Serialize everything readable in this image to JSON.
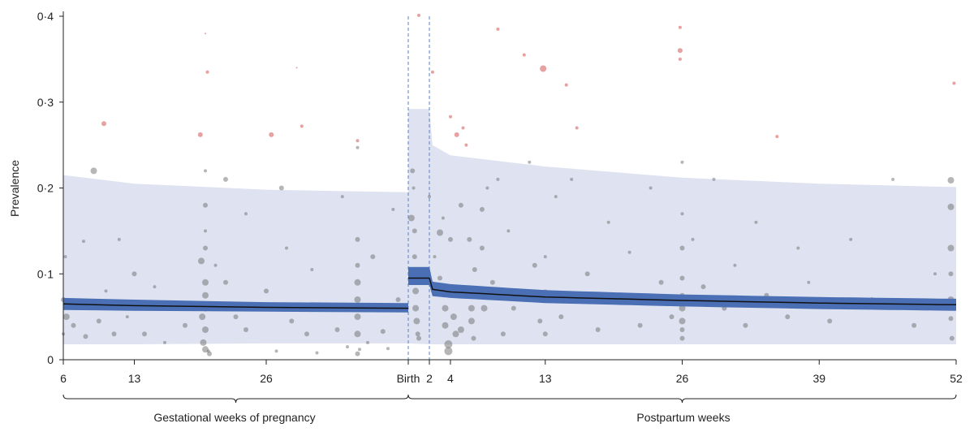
{
  "chart_data": {
    "type": "scatter",
    "ylabel": "Prevalence",
    "ylim": [
      0,
      0.4
    ],
    "y_ticks": [
      "0",
      "0·1",
      "0·2",
      "0·3",
      "0·4"
    ],
    "y_tick_values": [
      0,
      0.1,
      0.2,
      0.3,
      0.4
    ],
    "x_ticks_pregnancy": [
      "6",
      "13",
      "26",
      "Birth"
    ],
    "x_ticks_pregnancy_weeks": [
      6,
      13,
      26,
      40
    ],
    "x_ticks_postpartum": [
      "2",
      "4",
      "13",
      "26",
      "39",
      "52"
    ],
    "x_ticks_postpartum_weeks": [
      2,
      4,
      13,
      26,
      39,
      52
    ],
    "group_labels": {
      "pregnancy": "Gestational weeks of pregnancy",
      "postpartum": "Postpartum weeks"
    },
    "colors": {
      "ci_band": "#4a6fb5",
      "prediction_band": "#dfe3f1",
      "estimate_line": "#111111",
      "study_point": "#6e6e6e",
      "outlier_point": "#e08a8a",
      "reference_line": "#5b7fc4"
    },
    "pregnancy": {
      "estimate": [
        [
          6,
          0.065
        ],
        [
          13,
          0.063
        ],
        [
          26,
          0.061
        ],
        [
          40,
          0.06
        ]
      ],
      "ci_lower": [
        [
          6,
          0.058
        ],
        [
          13,
          0.057
        ],
        [
          26,
          0.056
        ],
        [
          40,
          0.055
        ]
      ],
      "ci_upper": [
        [
          6,
          0.072
        ],
        [
          13,
          0.07
        ],
        [
          26,
          0.067
        ],
        [
          40,
          0.066
        ]
      ],
      "pi_lower": [
        [
          6,
          0.018
        ],
        [
          13,
          0.018
        ],
        [
          26,
          0.019
        ],
        [
          40,
          0.019
        ]
      ],
      "pi_upper": [
        [
          6,
          0.215
        ],
        [
          13,
          0.205
        ],
        [
          26,
          0.198
        ],
        [
          40,
          0.195
        ]
      ]
    },
    "birth_segment": {
      "estimate": 0.095,
      "ci": [
        0.087,
        0.108
      ],
      "pi_upper": 0.292
    },
    "postpartum": {
      "estimate": [
        [
          2,
          0.095
        ],
        [
          2.3,
          0.082
        ],
        [
          4,
          0.079
        ],
        [
          13,
          0.073
        ],
        [
          26,
          0.069
        ],
        [
          39,
          0.066
        ],
        [
          52,
          0.064
        ]
      ],
      "ci_lower": [
        [
          2,
          0.087
        ],
        [
          2.3,
          0.074
        ],
        [
          4,
          0.072
        ],
        [
          13,
          0.066
        ],
        [
          26,
          0.062
        ],
        [
          39,
          0.059
        ],
        [
          52,
          0.057
        ]
      ],
      "ci_upper": [
        [
          2,
          0.108
        ],
        [
          2.3,
          0.091
        ],
        [
          4,
          0.088
        ],
        [
          13,
          0.081
        ],
        [
          26,
          0.076
        ],
        [
          39,
          0.073
        ],
        [
          52,
          0.071
        ]
      ],
      "pi_lower": [
        [
          2,
          0.018
        ],
        [
          4,
          0.018
        ],
        [
          13,
          0.018
        ],
        [
          26,
          0.018
        ],
        [
          39,
          0.018
        ],
        [
          52,
          0.018
        ]
      ],
      "pi_upper": [
        [
          2,
          0.292
        ],
        [
          2.3,
          0.25
        ],
        [
          4,
          0.238
        ],
        [
          13,
          0.225
        ],
        [
          26,
          0.212
        ],
        [
          39,
          0.205
        ],
        [
          52,
          0.201
        ]
      ]
    },
    "points_pregnancy": [
      [
        6,
        0.03,
        2
      ],
      [
        6,
        0.07,
        3
      ],
      [
        6.2,
        0.12,
        2
      ],
      [
        6.3,
        0.05,
        4
      ],
      [
        7,
        0.04,
        3
      ],
      [
        8,
        0.138,
        2
      ],
      [
        8.2,
        0.027,
        3
      ],
      [
        9,
        0.22,
        4
      ],
      [
        9.5,
        0.045,
        3
      ],
      [
        10,
        0.275,
        3
      ],
      [
        10.2,
        0.08,
        2
      ],
      [
        11,
        0.03,
        3
      ],
      [
        11.5,
        0.14,
        2
      ],
      [
        12.3,
        0.05,
        2
      ],
      [
        13,
        0.1,
        3
      ],
      [
        14,
        0.03,
        3
      ],
      [
        15,
        0.085,
        2
      ],
      [
        16,
        0.02,
        2
      ],
      [
        17,
        0.06,
        3
      ],
      [
        18,
        0.04,
        3
      ],
      [
        19.5,
        0.262,
        3
      ],
      [
        19.6,
        0.115,
        4
      ],
      [
        19.7,
        0.05,
        4
      ],
      [
        19.8,
        0.02,
        4
      ],
      [
        20,
        0.38,
        1
      ],
      [
        20,
        0.22,
        2
      ],
      [
        20,
        0.18,
        3
      ],
      [
        20,
        0.15,
        2
      ],
      [
        20,
        0.13,
        3
      ],
      [
        20,
        0.09,
        4
      ],
      [
        20,
        0.075,
        4
      ],
      [
        20,
        0.06,
        4
      ],
      [
        20,
        0.035,
        4
      ],
      [
        20,
        0.012,
        4
      ],
      [
        20.2,
        0.335,
        2
      ],
      [
        20.4,
        0.007,
        3
      ],
      [
        20.3,
        0.01,
        2
      ],
      [
        21,
        0.11,
        2
      ],
      [
        22,
        0.21,
        3
      ],
      [
        22,
        0.09,
        3
      ],
      [
        23,
        0.05,
        3
      ],
      [
        24,
        0.17,
        2
      ],
      [
        24,
        0.035,
        3
      ],
      [
        25,
        0.06,
        2
      ],
      [
        26,
        0.08,
        3
      ],
      [
        26.5,
        0.262,
        3
      ],
      [
        27,
        0.01,
        2
      ],
      [
        27.5,
        0.2,
        3
      ],
      [
        28,
        0.13,
        2
      ],
      [
        28.5,
        0.045,
        3
      ],
      [
        29,
        0.34,
        1
      ],
      [
        29.5,
        0.272,
        2
      ],
      [
        30,
        0.03,
        3
      ],
      [
        30.5,
        0.105,
        2
      ],
      [
        31,
        0.008,
        2
      ],
      [
        32,
        0.06,
        4
      ],
      [
        33,
        0.035,
        3
      ],
      [
        33.5,
        0.19,
        2
      ],
      [
        34,
        0.015,
        2
      ],
      [
        35,
        0.255,
        2
      ],
      [
        35,
        0.247,
        2
      ],
      [
        35,
        0.14,
        3
      ],
      [
        35,
        0.11,
        3
      ],
      [
        35,
        0.09,
        4
      ],
      [
        35,
        0.07,
        4
      ],
      [
        35,
        0.05,
        4
      ],
      [
        35,
        0.03,
        4
      ],
      [
        35,
        0.007,
        3
      ],
      [
        35.2,
        0.012,
        2
      ],
      [
        36,
        0.02,
        2
      ],
      [
        36.5,
        0.12,
        3
      ],
      [
        37.5,
        0.033,
        3
      ],
      [
        38,
        0.013,
        2
      ],
      [
        38.5,
        0.175,
        2
      ],
      [
        39,
        0.07,
        3
      ]
    ],
    "points_birth": [
      [
        0.15,
        0.165,
        4
      ],
      [
        0.2,
        0.22,
        3
      ],
      [
        0.25,
        0.2,
        2
      ],
      [
        0.3,
        0.15,
        3
      ],
      [
        0.3,
        0.12,
        3
      ],
      [
        0.35,
        0.08,
        4
      ],
      [
        0.35,
        0.06,
        4
      ],
      [
        0.4,
        0.045,
        4
      ],
      [
        0.45,
        0.03,
        3
      ],
      [
        0.5,
        0.025,
        3
      ],
      [
        0.5,
        0.401,
        2
      ],
      [
        1.0,
        0.19,
        2
      ]
    ],
    "points_postpartum": [
      [
        2.3,
        0.335,
        2
      ],
      [
        2.5,
        0.12,
        2
      ],
      [
        3,
        0.148,
        4
      ],
      [
        3,
        0.095,
        3
      ],
      [
        3.3,
        0.165,
        2
      ],
      [
        3.5,
        0.06,
        4
      ],
      [
        3.5,
        0.04,
        4
      ],
      [
        3.8,
        0.018,
        5
      ],
      [
        3.8,
        0.01,
        5
      ],
      [
        4,
        0.283,
        2
      ],
      [
        4,
        0.14,
        3
      ],
      [
        4.3,
        0.05,
        4
      ],
      [
        4.5,
        0.03,
        4
      ],
      [
        4.6,
        0.262,
        3
      ],
      [
        5,
        0.18,
        3
      ],
      [
        5,
        0.035,
        4
      ],
      [
        5.2,
        0.27,
        2
      ],
      [
        5.5,
        0.25,
        2
      ],
      [
        5.8,
        0.14,
        3
      ],
      [
        6,
        0.08,
        4
      ],
      [
        6,
        0.06,
        4
      ],
      [
        6,
        0.045,
        4
      ],
      [
        6.2,
        0.025,
        3
      ],
      [
        6.3,
        0.105,
        3
      ],
      [
        7,
        0.175,
        3
      ],
      [
        7,
        0.13,
        3
      ],
      [
        7.2,
        0.06,
        4
      ],
      [
        7.5,
        0.2,
        2
      ],
      [
        8,
        0.09,
        3
      ],
      [
        8.5,
        0.385,
        2
      ],
      [
        8.5,
        0.21,
        2
      ],
      [
        9,
        0.03,
        3
      ],
      [
        9.5,
        0.15,
        2
      ],
      [
        10,
        0.06,
        3
      ],
      [
        11,
        0.355,
        2
      ],
      [
        11.5,
        0.23,
        2
      ],
      [
        12,
        0.11,
        3
      ],
      [
        12.5,
        0.045,
        3
      ],
      [
        12.8,
        0.339,
        4
      ],
      [
        13,
        0.12,
        2
      ],
      [
        13,
        0.078,
        4
      ],
      [
        13,
        0.03,
        3
      ],
      [
        14,
        0.19,
        2
      ],
      [
        14.5,
        0.05,
        3
      ],
      [
        15,
        0.32,
        2
      ],
      [
        15.5,
        0.21,
        2
      ],
      [
        16,
        0.27,
        2
      ],
      [
        17,
        0.1,
        3
      ],
      [
        18,
        0.035,
        3
      ],
      [
        19,
        0.16,
        2
      ],
      [
        20,
        0.07,
        3
      ],
      [
        21,
        0.125,
        2
      ],
      [
        22,
        0.04,
        3
      ],
      [
        23,
        0.2,
        2
      ],
      [
        24,
        0.09,
        3
      ],
      [
        25,
        0.05,
        3
      ],
      [
        25.8,
        0.387,
        2
      ],
      [
        25.8,
        0.36,
        3
      ],
      [
        25.8,
        0.35,
        2
      ],
      [
        26,
        0.23,
        2
      ],
      [
        26,
        0.17,
        2
      ],
      [
        26,
        0.13,
        3
      ],
      [
        26,
        0.095,
        3
      ],
      [
        26,
        0.075,
        3
      ],
      [
        26,
        0.06,
        4
      ],
      [
        26,
        0.045,
        4
      ],
      [
        26,
        0.035,
        3
      ],
      [
        26,
        0.025,
        3
      ],
      [
        27,
        0.14,
        2
      ],
      [
        28,
        0.085,
        3
      ],
      [
        29,
        0.21,
        2
      ],
      [
        30,
        0.06,
        3
      ],
      [
        31,
        0.11,
        2
      ],
      [
        32,
        0.04,
        3
      ],
      [
        33,
        0.16,
        2
      ],
      [
        34,
        0.075,
        3
      ],
      [
        35,
        0.26,
        2
      ],
      [
        36,
        0.05,
        3
      ],
      [
        37,
        0.13,
        2
      ],
      [
        38,
        0.09,
        2
      ],
      [
        40,
        0.045,
        3
      ],
      [
        42,
        0.14,
        2
      ],
      [
        44,
        0.07,
        3
      ],
      [
        46,
        0.21,
        2
      ],
      [
        48,
        0.04,
        3
      ],
      [
        50,
        0.1,
        2
      ],
      [
        51.5,
        0.209,
        4
      ],
      [
        51.5,
        0.178,
        4
      ],
      [
        51.5,
        0.13,
        4
      ],
      [
        51.5,
        0.1,
        3
      ],
      [
        51.5,
        0.07,
        4
      ],
      [
        51.5,
        0.048,
        3
      ],
      [
        51.6,
        0.025,
        3
      ],
      [
        51.8,
        0.322,
        2
      ]
    ],
    "outlier_threshold": 0.25
  }
}
